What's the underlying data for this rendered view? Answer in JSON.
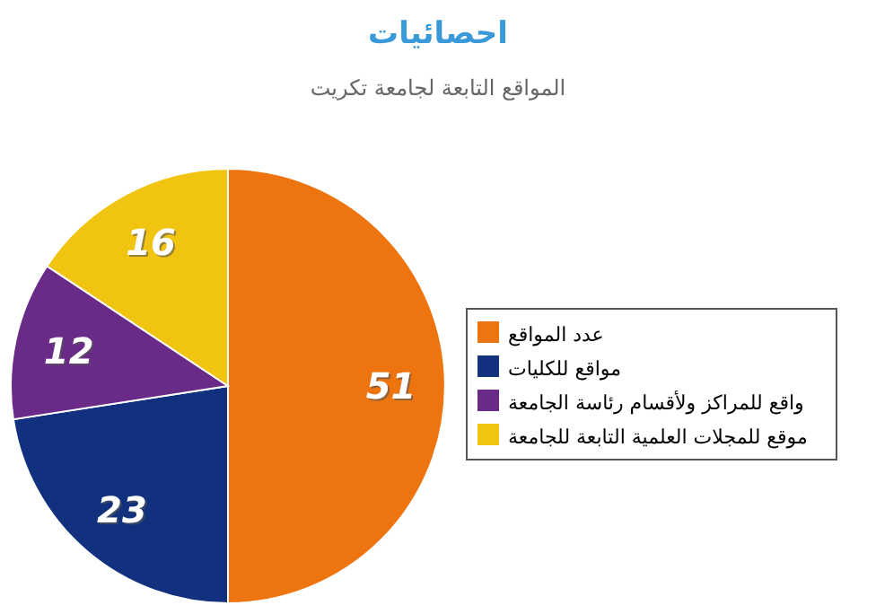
{
  "chart_data": {
    "type": "pie",
    "title": "احصائيات",
    "subtitle": "المواقع التابعة لجامعة تكريت",
    "categories": [
      "عدد المواقع",
      "مواقع للكليات",
      "واقع للمراكز ولأقسام رئاسة الجامعة",
      "موقع للمجلات العلمية التابعة للجامعة"
    ],
    "values": [
      51,
      23,
      12,
      16
    ],
    "colors": [
      "#ee7410",
      "#11307d",
      "#692a88",
      "#f2c412"
    ],
    "data_labels": true,
    "legend": "right"
  }
}
